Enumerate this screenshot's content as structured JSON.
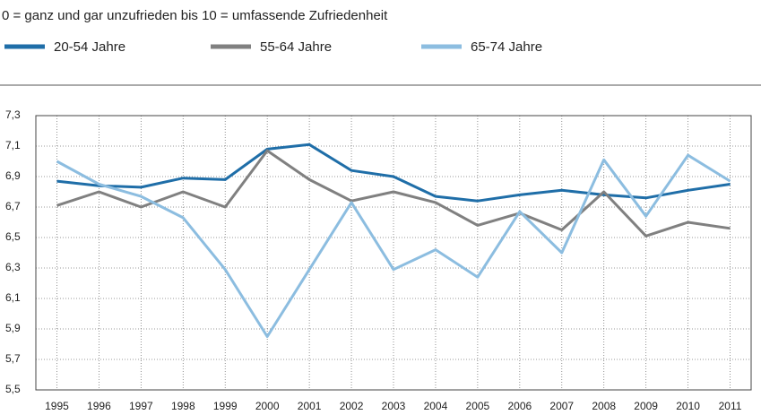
{
  "chart_data": {
    "type": "line",
    "subtitle": "0 = ganz und gar unzufrieden bis 10 = umfassende Zufriedenheit",
    "categories": [
      "1995",
      "1996",
      "1997",
      "1998",
      "1999",
      "2000",
      "2001",
      "2002",
      "2003",
      "2004",
      "2005",
      "2006",
      "2007",
      "2008",
      "2009",
      "2010",
      "2011"
    ],
    "series": [
      {
        "name": "20-54 Jahre",
        "color": "#1f6ea8",
        "values": [
          6.87,
          6.84,
          6.83,
          6.89,
          6.88,
          7.08,
          7.11,
          6.94,
          6.9,
          6.77,
          6.74,
          6.78,
          6.81,
          6.78,
          6.76,
          6.81,
          6.85
        ]
      },
      {
        "name": "55-64 Jahre",
        "color": "#808080",
        "values": [
          6.71,
          6.8,
          6.7,
          6.8,
          6.7,
          7.07,
          6.88,
          6.74,
          6.8,
          6.73,
          6.58,
          6.66,
          6.55,
          6.8,
          6.51,
          6.6,
          6.56
        ]
      },
      {
        "name": "65-74 Jahre",
        "color": "#8cbde0",
        "values": [
          7.0,
          6.85,
          6.77,
          6.63,
          6.29,
          5.85,
          6.29,
          6.73,
          6.29,
          6.42,
          6.24,
          6.67,
          6.4,
          7.01,
          6.64,
          7.04,
          6.87
        ]
      }
    ],
    "ylim": [
      5.5,
      7.3
    ],
    "yticks": [
      {
        "value": 5.5,
        "label": "5,5"
      },
      {
        "value": 5.7,
        "label": "5,7"
      },
      {
        "value": 5.9,
        "label": "5,9"
      },
      {
        "value": 6.1,
        "label": "6,1"
      },
      {
        "value": 6.3,
        "label": "6,3"
      },
      {
        "value": 6.5,
        "label": "6,5"
      },
      {
        "value": 6.7,
        "label": "6,7"
      },
      {
        "value": 6.9,
        "label": "6,9"
      },
      {
        "value": 7.1,
        "label": "7,1"
      },
      {
        "value": 7.3,
        "label": "7,3"
      }
    ],
    "grid": true
  }
}
